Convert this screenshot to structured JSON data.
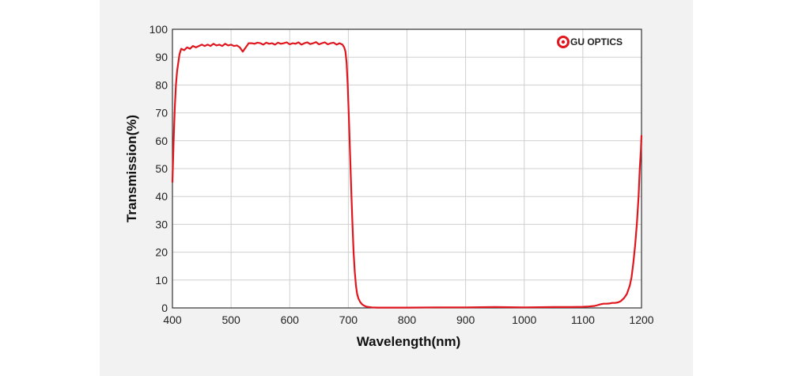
{
  "chart_data": {
    "type": "line",
    "title": "",
    "xlabel": "Wavelength(nm)",
    "ylabel": "Transmission(%)",
    "xlim": [
      400,
      1200
    ],
    "ylim": [
      0,
      100
    ],
    "x_ticks": [
      "400",
      "500",
      "600",
      "700",
      "800",
      "900",
      "1000",
      "1100",
      "1200"
    ],
    "y_ticks": [
      "0",
      "10",
      "20",
      "30",
      "40",
      "50",
      "60",
      "70",
      "80",
      "90",
      "100"
    ],
    "grid": true,
    "brand": "GU OPTICS",
    "brand_position": "top-right",
    "series": [
      {
        "color": "#e0161e",
        "x": [
          400,
          402,
          404,
          406,
          408,
          410,
          412,
          415,
          420,
          425,
          430,
          435,
          440,
          445,
          450,
          455,
          460,
          465,
          470,
          475,
          480,
          485,
          490,
          495,
          500,
          505,
          510,
          515,
          520,
          525,
          530,
          535,
          540,
          545,
          550,
          555,
          560,
          565,
          570,
          575,
          580,
          585,
          590,
          595,
          600,
          605,
          610,
          615,
          620,
          625,
          630,
          635,
          640,
          645,
          650,
          655,
          660,
          665,
          670,
          675,
          680,
          685,
          690,
          693,
          695,
          697,
          699,
          701,
          703,
          705,
          707,
          709,
          711,
          713,
          715,
          717,
          720,
          723,
          726,
          730,
          735,
          740,
          750,
          760,
          780,
          800,
          850,
          900,
          950,
          1000,
          1050,
          1080,
          1100,
          1110,
          1120,
          1125,
          1130,
          1135,
          1140,
          1145,
          1150,
          1155,
          1160,
          1165,
          1170,
          1175,
          1180,
          1183,
          1186,
          1189,
          1192,
          1195,
          1197,
          1199,
          1200
        ],
        "y": [
          45,
          60,
          72,
          80,
          85,
          88,
          91,
          93,
          92.5,
          93.5,
          93,
          94,
          93.5,
          94,
          94.5,
          94,
          94.5,
          94,
          94.8,
          94.2,
          94.5,
          94,
          94.8,
          94.2,
          94.5,
          94,
          94.2,
          93.5,
          92,
          93.5,
          95,
          95,
          94.8,
          95.2,
          95,
          94.5,
          95.2,
          94.8,
          95,
          94.5,
          95.2,
          94.8,
          95,
          95.3,
          94.6,
          95,
          94.8,
          95.3,
          94.5,
          95,
          95.3,
          94.7,
          95,
          95.4,
          94.6,
          95,
          95.3,
          94.6,
          95,
          95.2,
          94.5,
          95,
          94.5,
          93.5,
          92,
          88,
          80,
          68,
          55,
          42,
          30,
          20,
          13,
          8,
          5,
          3.5,
          2.2,
          1.4,
          0.9,
          0.5,
          0.3,
          0.2,
          0.1,
          0.1,
          0.1,
          0.1,
          0.2,
          0.2,
          0.3,
          0.2,
          0.3,
          0.3,
          0.4,
          0.5,
          0.7,
          1.0,
          1.3,
          1.5,
          1.5,
          1.6,
          1.8,
          1.8,
          2.0,
          2.5,
          3.5,
          5.0,
          8.0,
          11,
          16,
          22,
          30,
          40,
          50,
          57,
          62
        ]
      }
    ]
  }
}
